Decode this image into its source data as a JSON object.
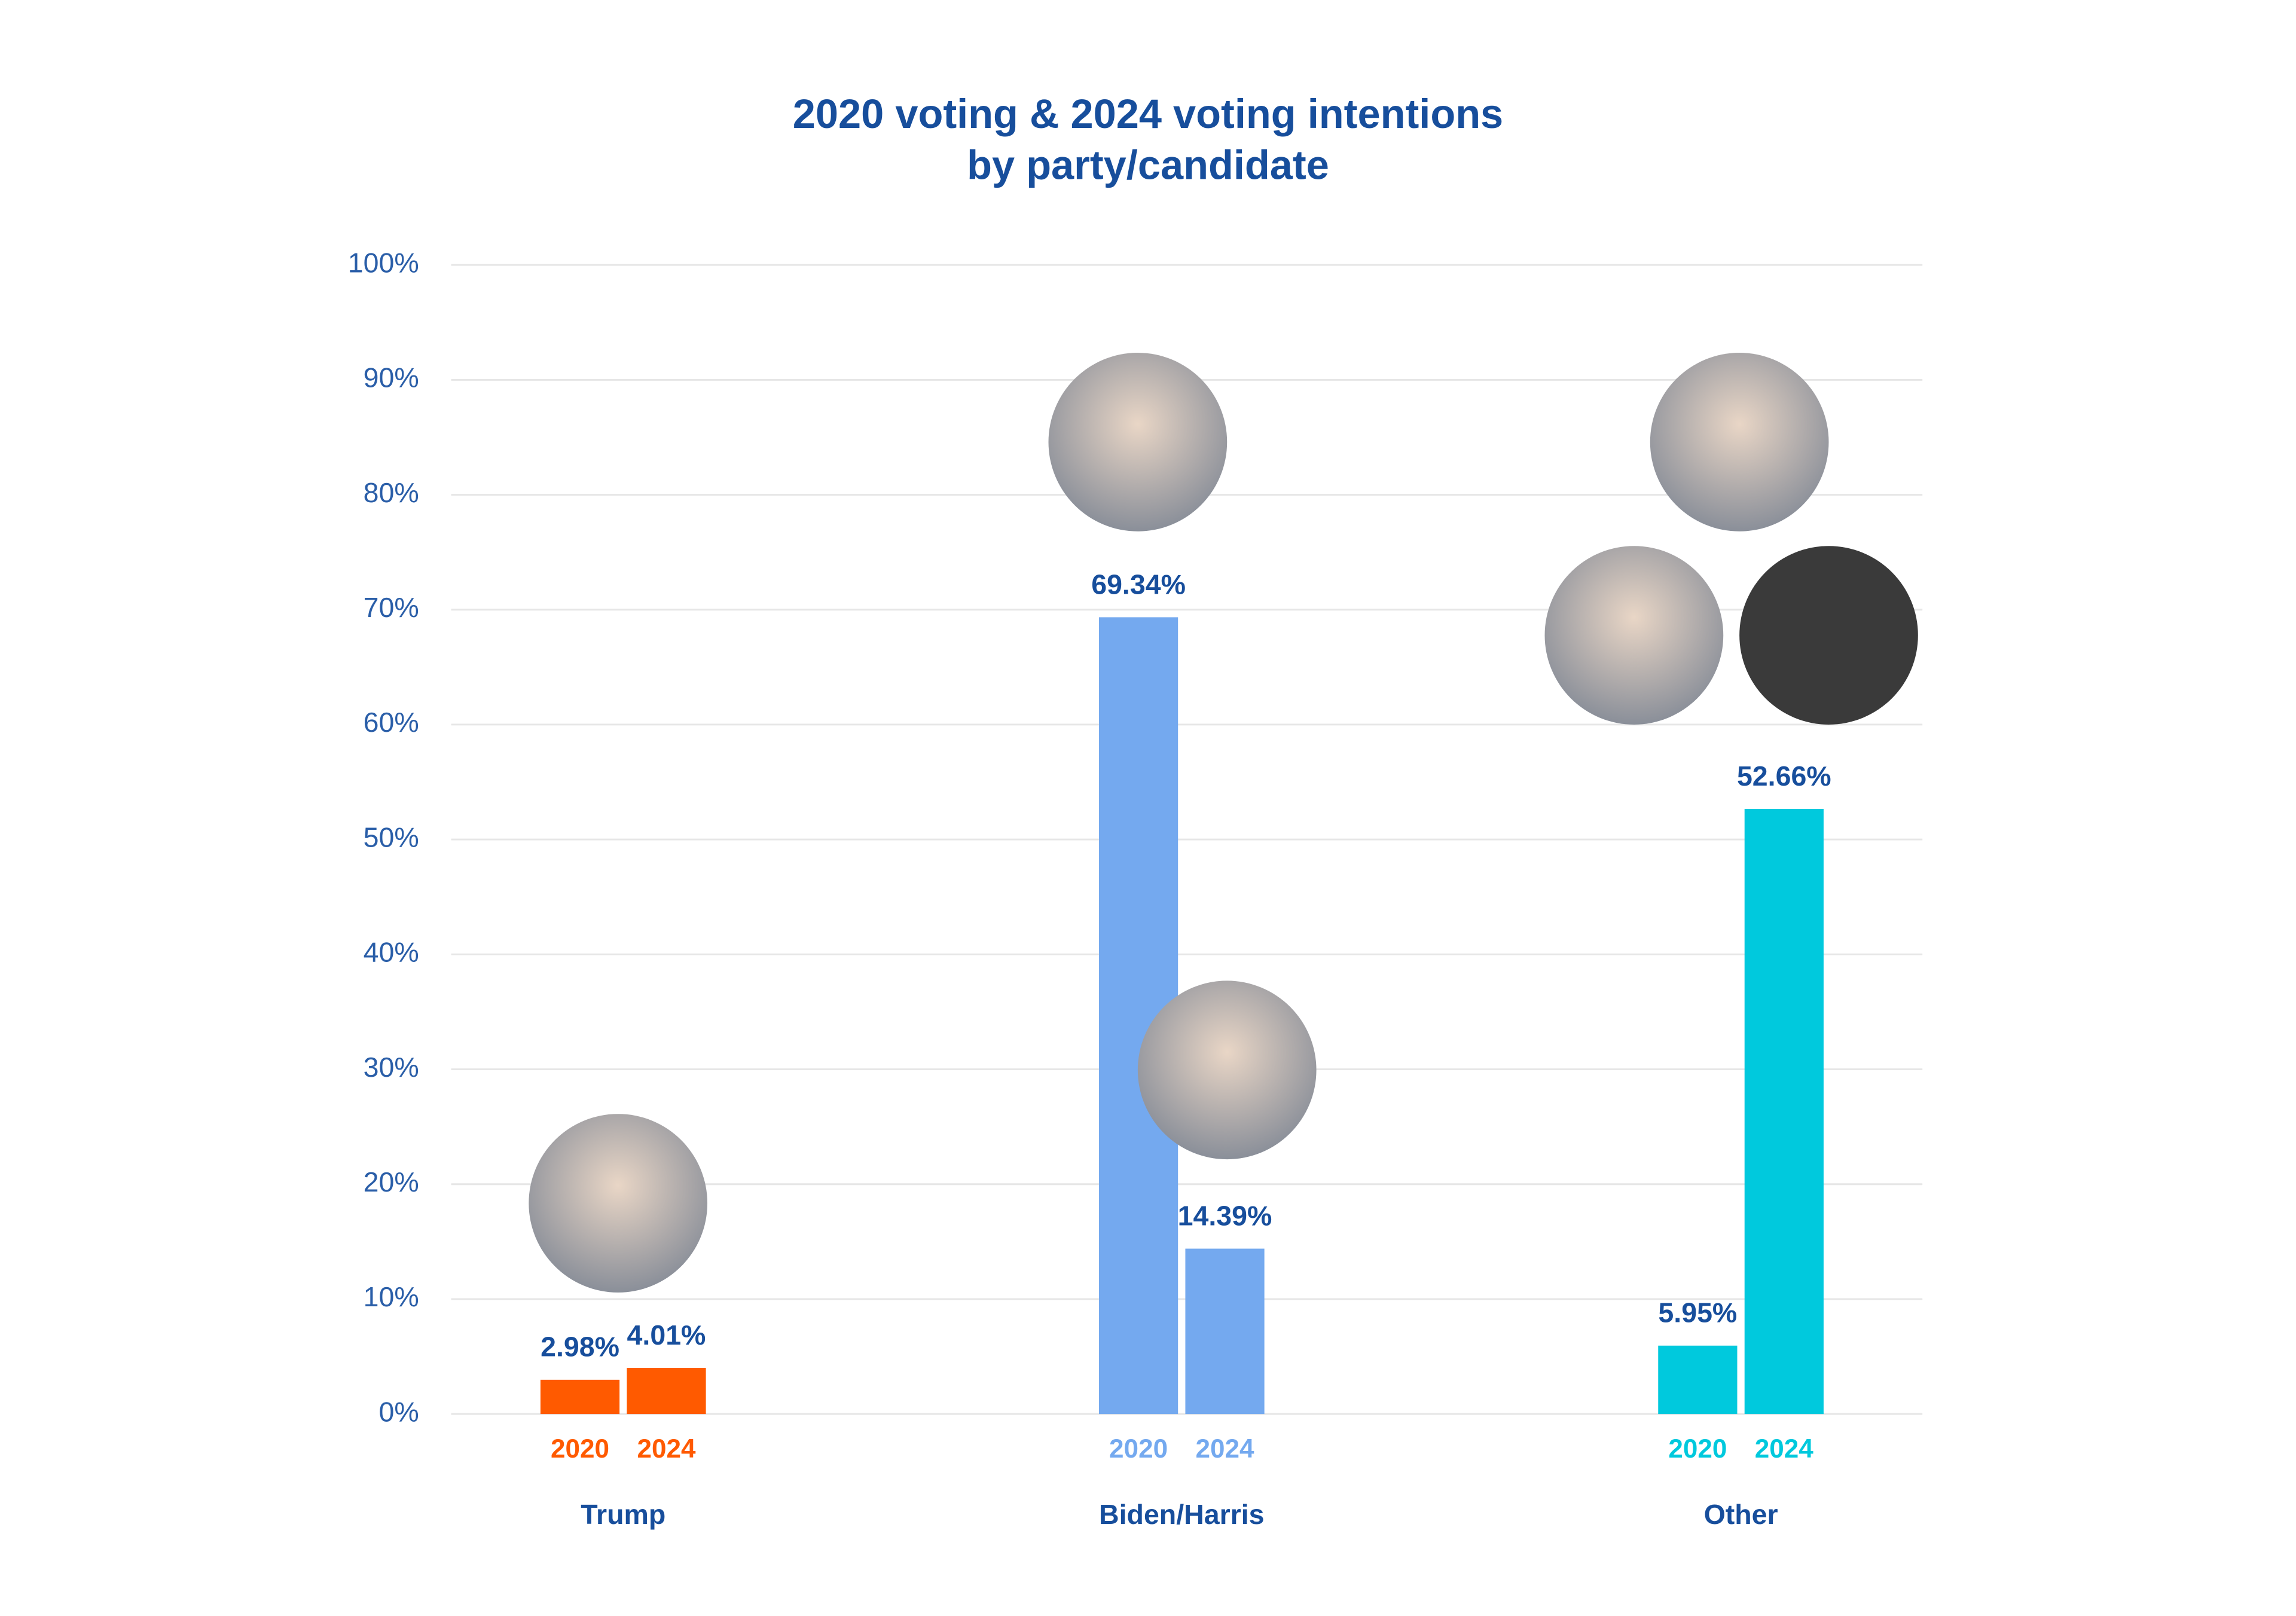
{
  "chart_data": {
    "type": "bar",
    "title": [
      "2020 voting & 2024 voting intentions",
      "by party/candidate"
    ],
    "categories": [
      "Trump",
      "Biden/Harris",
      "Other"
    ],
    "category_colors": [
      "#ff5a00",
      "#74a9ef",
      "#00c9dd"
    ],
    "series": [
      {
        "name": "2020",
        "values": [
          2.98,
          69.34,
          5.95
        ],
        "value_labels": [
          "2.98%",
          "69.34%",
          "5.95%"
        ]
      },
      {
        "name": "2024",
        "values": [
          4.01,
          14.39,
          52.66
        ],
        "value_labels": [
          "4.01%",
          "14.39%",
          "52.66%"
        ]
      }
    ],
    "ylim": [
      0,
      100
    ],
    "yticks": [
      {
        "value": 0,
        "label": "0%"
      },
      {
        "value": 10,
        "label": "10%"
      },
      {
        "value": 20,
        "label": "20%"
      },
      {
        "value": 30,
        "label": "30%"
      },
      {
        "value": 40,
        "label": "40%"
      },
      {
        "value": 50,
        "label": "50%"
      },
      {
        "value": 60,
        "label": "60%"
      },
      {
        "value": 70,
        "label": "70%"
      },
      {
        "value": 80,
        "label": "80%"
      },
      {
        "value": 90,
        "label": "90%"
      },
      {
        "value": 100,
        "label": "100%"
      }
    ],
    "grid": true
  }
}
